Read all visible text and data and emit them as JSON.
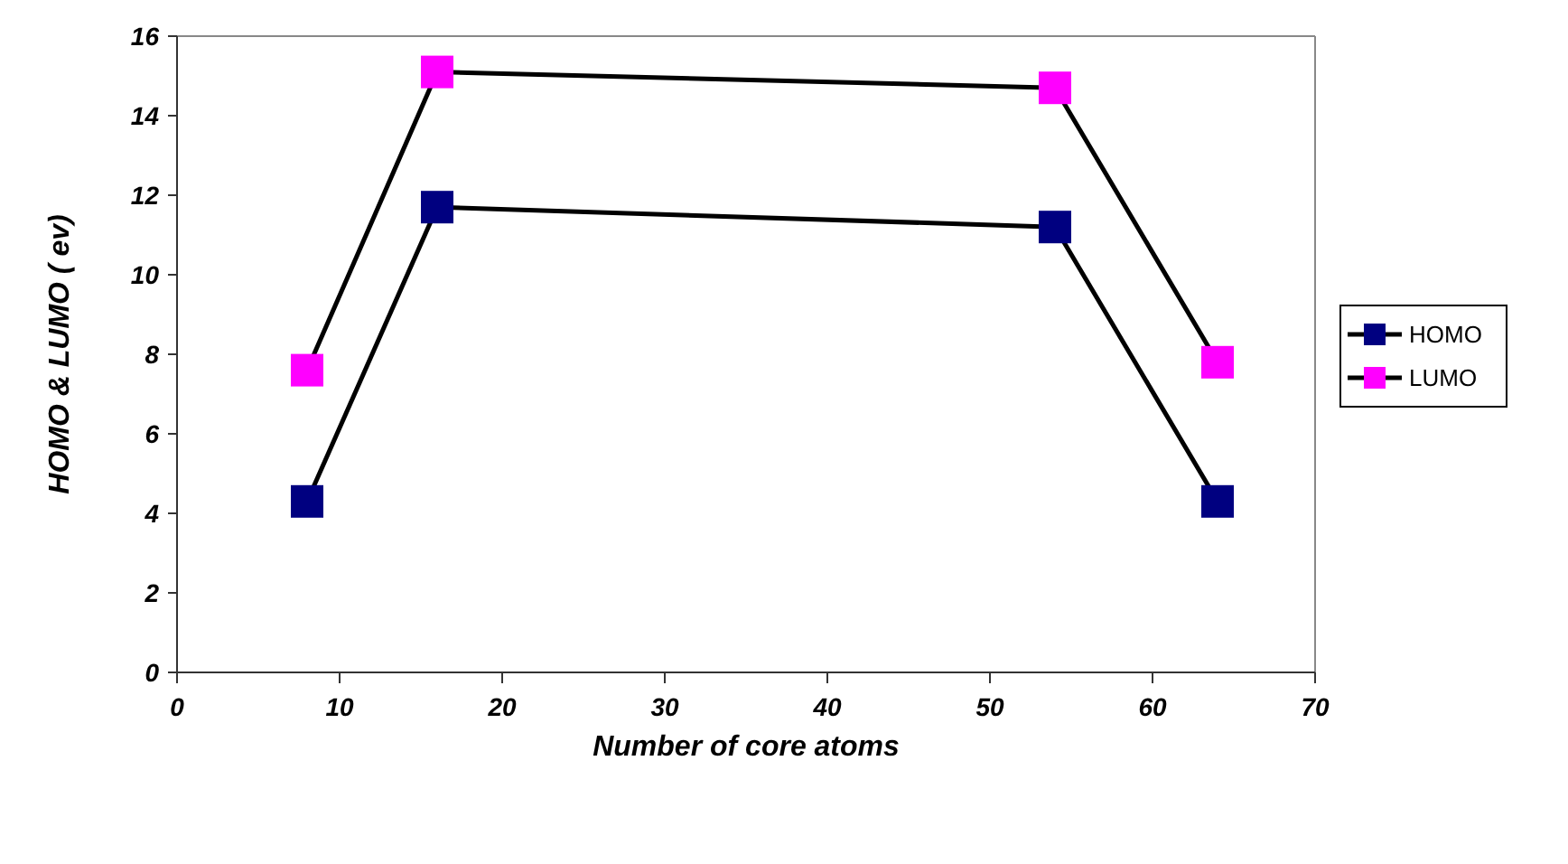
{
  "chart_data": {
    "type": "line",
    "xlabel": "Number of core atoms",
    "ylabel": "HOMO & LUMO ( ev)",
    "x": [
      8,
      16,
      54,
      64
    ],
    "series": [
      {
        "name": "HOMO",
        "color": "#000080",
        "values": [
          4.3,
          11.7,
          11.2,
          4.3
        ]
      },
      {
        "name": "LUMO",
        "color": "#ff00ff",
        "values": [
          7.6,
          15.1,
          14.7,
          7.8
        ]
      }
    ],
    "xlim": [
      0,
      70
    ],
    "xticks": [
      0,
      10,
      20,
      30,
      40,
      50,
      60,
      70
    ],
    "ylim": [
      0,
      16
    ],
    "yticks": [
      0,
      2,
      4,
      6,
      8,
      10,
      12,
      14,
      16
    ],
    "legend": "right",
    "marker": "square",
    "line_style": "solid",
    "grid": false
  }
}
